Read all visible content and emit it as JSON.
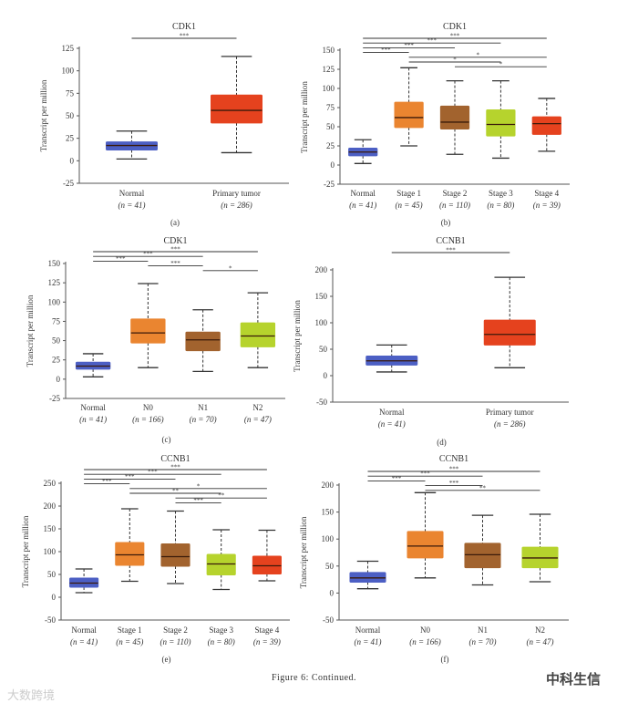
{
  "caption": "Figure 6: Continued.",
  "watermarks": {
    "left": "大数跨境",
    "right": "中科生信"
  },
  "colors": {
    "normal": "#4c5fc4",
    "tumor": "#e5421e",
    "orange": "#ea8530",
    "brown": "#a2632e",
    "lime": "#b6d32d",
    "red": "#e5421e"
  },
  "chart_data": [
    {
      "type": "box",
      "panel": "(a)",
      "title": "CDK1",
      "ylabel": "Transcript per million",
      "ylim": [
        -25,
        125
      ],
      "yticks": [
        -25,
        0,
        25,
        50,
        75,
        100,
        125
      ],
      "groups": [
        {
          "label": "Normal",
          "n": "(n = 41)",
          "color": "#4c5fc4",
          "stats": [
            2,
            12,
            17,
            21,
            33
          ]
        },
        {
          "label": "Primary tumor",
          "n": "(n = 286)",
          "color": "#e5421e",
          "stats": [
            9,
            42,
            56,
            73,
            116
          ]
        }
      ],
      "significance": [
        {
          "from": 0,
          "to": 1,
          "label": "***"
        }
      ]
    },
    {
      "type": "box",
      "panel": "(b)",
      "title": "CDK1",
      "ylabel": "Transcript per million",
      "ylim": [
        -25,
        150
      ],
      "yticks": [
        -25,
        0,
        25,
        50,
        75,
        100,
        125,
        150
      ],
      "groups": [
        {
          "label": "Normal",
          "n": "(n = 41)",
          "color": "#4c5fc4",
          "stats": [
            2,
            12,
            17,
            22,
            33
          ]
        },
        {
          "label": "Stage 1",
          "n": "(n = 45)",
          "color": "#ea8530",
          "stats": [
            25,
            49,
            62,
            82,
            127
          ]
        },
        {
          "label": "Stage 2",
          "n": "(n = 110)",
          "color": "#a2632e",
          "stats": [
            14,
            47,
            56,
            77,
            110
          ]
        },
        {
          "label": "Stage 3",
          "n": "(n = 80)",
          "color": "#b6d32d",
          "stats": [
            9,
            38,
            53,
            72,
            110
          ]
        },
        {
          "label": "Stage 4",
          "n": "(n = 39)",
          "color": "#e5421e",
          "stats": [
            18,
            40,
            54,
            63,
            87
          ]
        }
      ],
      "significance": [
        {
          "from": 0,
          "to": 4,
          "label": "***"
        },
        {
          "from": 0,
          "to": 3,
          "label": "***"
        },
        {
          "from": 0,
          "to": 2,
          "label": "***"
        },
        {
          "from": 0,
          "to": 1,
          "label": "***"
        },
        {
          "from": 1,
          "to": 4,
          "label": "*"
        },
        {
          "from": 1,
          "to": 3,
          "label": "*"
        },
        {
          "from": 2,
          "to": 4,
          "label": "*"
        }
      ]
    },
    {
      "type": "box",
      "panel": "(c)",
      "title": "CDK1",
      "ylabel": "Transcript per million",
      "ylim": [
        -25,
        150
      ],
      "yticks": [
        -25,
        0,
        25,
        50,
        75,
        100,
        125,
        150
      ],
      "groups": [
        {
          "label": "Normal",
          "n": "(n = 41)",
          "color": "#4c5fc4",
          "stats": [
            3,
            13,
            17,
            22,
            33
          ]
        },
        {
          "label": "N0",
          "n": "(n = 166)",
          "color": "#ea8530",
          "stats": [
            15,
            47,
            60,
            78,
            124
          ]
        },
        {
          "label": "N1",
          "n": "(n = 70)",
          "color": "#a2632e",
          "stats": [
            10,
            37,
            51,
            61,
            90
          ]
        },
        {
          "label": "N2",
          "n": "(n = 47)",
          "color": "#b6d32d",
          "stats": [
            15,
            42,
            56,
            73,
            112
          ]
        }
      ],
      "significance": [
        {
          "from": 0,
          "to": 3,
          "label": "***"
        },
        {
          "from": 0,
          "to": 2,
          "label": "***"
        },
        {
          "from": 0,
          "to": 1,
          "label": "***"
        },
        {
          "from": 1,
          "to": 2,
          "label": "***"
        },
        {
          "from": 2,
          "to": 3,
          "label": "*"
        }
      ]
    },
    {
      "type": "box",
      "panel": "(d)",
      "title": "CCNB1",
      "ylabel": "Transcript per million",
      "ylim": [
        -50,
        200
      ],
      "yticks": [
        -50,
        0,
        50,
        100,
        150,
        200
      ],
      "groups": [
        {
          "label": "Normal",
          "n": "(n = 41)",
          "color": "#4c5fc4",
          "stats": [
            7,
            20,
            28,
            37,
            58
          ]
        },
        {
          "label": "Primary tumor",
          "n": "(n = 286)",
          "color": "#e5421e",
          "stats": [
            15,
            58,
            78,
            105,
            186
          ]
        }
      ],
      "significance": [
        {
          "from": 0,
          "to": 1,
          "label": "***"
        }
      ]
    },
    {
      "type": "box",
      "panel": "(e)",
      "title": "CCNB1",
      "ylabel": "Transcript per million",
      "ylim": [
        -50,
        250
      ],
      "yticks": [
        -50,
        0,
        50,
        100,
        150,
        200,
        250
      ],
      "groups": [
        {
          "label": "Normal",
          "n": "(n = 41)",
          "color": "#4c5fc4",
          "stats": [
            10,
            22,
            31,
            42,
            62
          ]
        },
        {
          "label": "Stage 1",
          "n": "(n = 45)",
          "color": "#ea8530",
          "stats": [
            35,
            70,
            93,
            120,
            194
          ]
        },
        {
          "label": "Stage 2",
          "n": "(n = 110)",
          "color": "#a2632e",
          "stats": [
            30,
            68,
            89,
            117,
            189
          ]
        },
        {
          "label": "Stage 3",
          "n": "(n = 80)",
          "color": "#b6d32d",
          "stats": [
            17,
            49,
            73,
            94,
            148
          ]
        },
        {
          "label": "Stage 4",
          "n": "(n = 39)",
          "color": "#e5421e",
          "stats": [
            36,
            51,
            69,
            90,
            147
          ]
        }
      ],
      "significance": [
        {
          "from": 0,
          "to": 4,
          "label": "***"
        },
        {
          "from": 0,
          "to": 3,
          "label": "***"
        },
        {
          "from": 0,
          "to": 2,
          "label": "***"
        },
        {
          "from": 0,
          "to": 1,
          "label": "***"
        },
        {
          "from": 1,
          "to": 4,
          "label": "*"
        },
        {
          "from": 1,
          "to": 3,
          "label": "**"
        },
        {
          "from": 2,
          "to": 4,
          "label": "**"
        },
        {
          "from": 2,
          "to": 3,
          "label": "***"
        }
      ]
    },
    {
      "type": "box",
      "panel": "(f)",
      "title": "CCNB1",
      "ylabel": "Transcript per million",
      "ylim": [
        -50,
        200
      ],
      "yticks": [
        -50,
        0,
        50,
        100,
        150,
        200
      ],
      "groups": [
        {
          "label": "Normal",
          "n": "(n = 41)",
          "color": "#4c5fc4",
          "stats": [
            8,
            20,
            28,
            38,
            59
          ]
        },
        {
          "label": "N0",
          "n": "(n = 166)",
          "color": "#ea8530",
          "stats": [
            28,
            65,
            87,
            114,
            186
          ]
        },
        {
          "label": "N1",
          "n": "(n = 70)",
          "color": "#a2632e",
          "stats": [
            15,
            47,
            71,
            92,
            144
          ]
        },
        {
          "label": "N2",
          "n": "(n = 47)",
          "color": "#b6d32d",
          "stats": [
            21,
            47,
            65,
            85,
            146
          ]
        }
      ],
      "significance": [
        {
          "from": 0,
          "to": 3,
          "label": "***"
        },
        {
          "from": 0,
          "to": 2,
          "label": "***"
        },
        {
          "from": 0,
          "to": 1,
          "label": "***"
        },
        {
          "from": 1,
          "to": 2,
          "label": "***"
        },
        {
          "from": 1,
          "to": 3,
          "label": "**"
        }
      ]
    }
  ]
}
